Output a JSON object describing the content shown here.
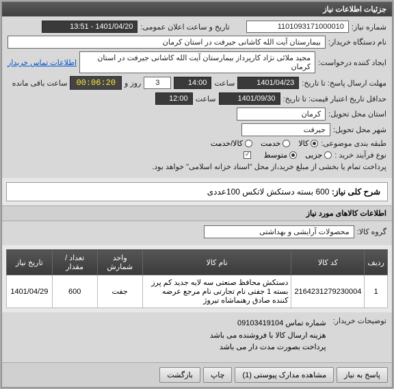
{
  "panel": {
    "title": "جزئیات اطلاعات نیاز"
  },
  "fields": {
    "need_number_label": "شماره نیاز:",
    "need_number": "1101093171000010",
    "announce_label": "تاریخ و ساعت اعلان عمومی:",
    "announce": "1401/04/20 - 13:51",
    "buyer_org_label": "نام دستگاه خریدار:",
    "buyer_org": "بیمارستان آیت الله کاشانی جیرفت در استان کرمان",
    "requester_label": "ایجاد کننده درخواست:",
    "requester": "مجید ملائی نژاد کارپرداز بیمارستان آیت الله کاشانی جیرفت در استان کرمان",
    "contact_link": "اطلاعات تماس خریدار",
    "deadline_label": "مهلت ارسال پاسخ: تا تاریخ:",
    "deadline_date": "1401/04/23",
    "time_label": "ساعت",
    "deadline_time": "14:00",
    "days_label": "روز و",
    "days_value": "3",
    "remaining_label": "ساعت باقی مانده",
    "countdown": "00:06:20",
    "validity_label": "حداقل تاریخ اعتبار قیمت: تا تاریخ:",
    "validity_date": "1401/09/30",
    "validity_time": "12:00",
    "province_label": "استان محل تحویل:",
    "province": "کرمان",
    "city_label": "شهر محل تحویل:",
    "city": "جیرفت",
    "category_label": "طبقه بندی موضوعی:",
    "buy_type_label": "نوع فرآیند خرید :",
    "payment_note": "پرداخت تمام یا بخشی از مبلغ خرید،از محل \"اسناد خزانه اسلامی\" خواهد بود."
  },
  "category_options": {
    "goods": "کالا",
    "service": "خدمت",
    "both": "کالا/خدمت"
  },
  "buy_type_options": {
    "minor": "جزیی",
    "medium": "متوسط"
  },
  "summary": {
    "label": "شرح کلی نیاز:",
    "text": "600 بسته دستکش لاتکس 100عددی"
  },
  "goods_section": {
    "title": "اطلاعات کالاهای مورد نیاز",
    "group_label": "گروه کالا:",
    "group_value": "محصولات آرایشی و بهداشتی"
  },
  "table": {
    "columns": [
      "ردیف",
      "کد کالا",
      "نام کالا",
      "واحد شمارش",
      "تعداد / مقدار",
      "تاریخ نیاز"
    ],
    "col_widths": [
      "6%",
      "18%",
      "40%",
      "12%",
      "12%",
      "12%"
    ],
    "rows": [
      [
        "1",
        "2164231279230004",
        "دستکش محافظ صنعتی سه لایه جدید کم پرز بسته 1 جفتی نام تجارتی نام مرجع عرضه کننده صادق رهنماشاه تیروژ",
        "جفت",
        "600",
        "1401/04/29"
      ]
    ]
  },
  "notes": {
    "label": "توضیحات خریدار:",
    "lines": [
      "شماره تماس 09103419104",
      "هزینه ارسال کالا با فروشنده می باشد",
      "پرداخت بصورت مدت دار می باشد"
    ]
  },
  "buttons": {
    "respond": "پاسخ به نیاز",
    "attachments": "مشاهده مدارک پیوستی (1)",
    "print": "چاپ",
    "back": "بازگشت"
  }
}
